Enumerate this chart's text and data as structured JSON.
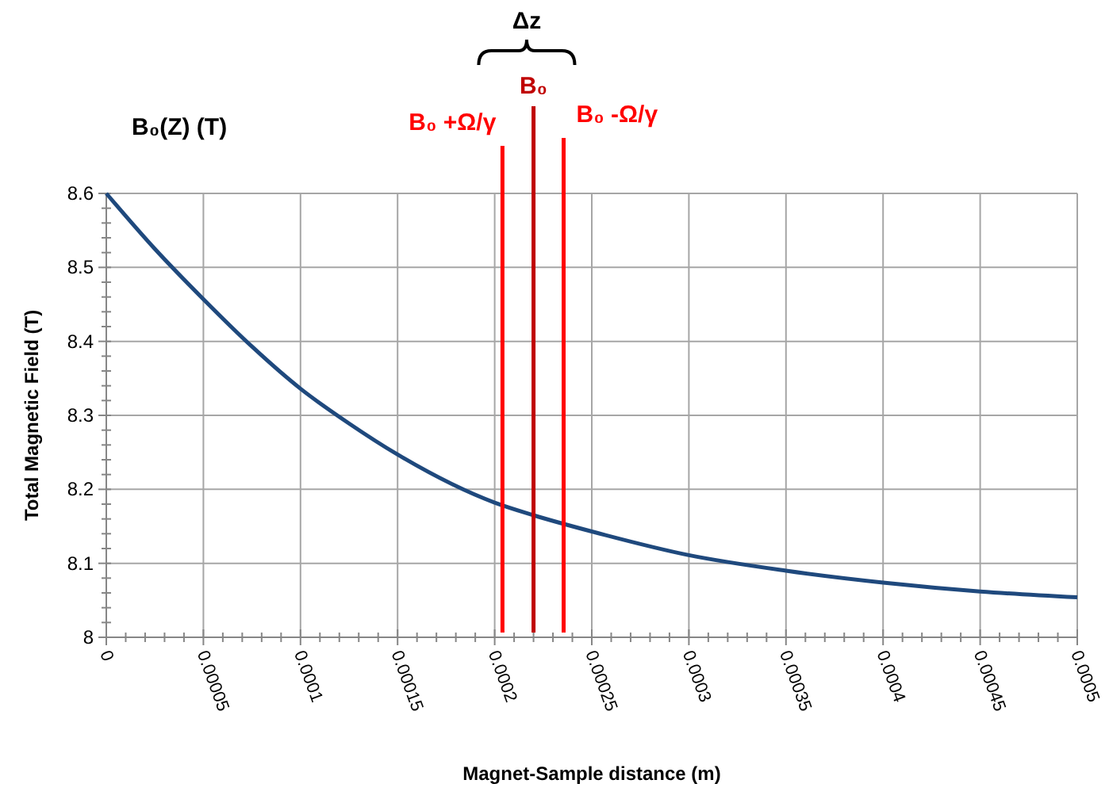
{
  "chart_data": {
    "type": "line",
    "xlabel": "Magnet-Sample distance (m)",
    "ylabel": "Total Magnetic Field (T)",
    "annotations": [
      "B₀(Z) (T)",
      "Δz"
    ],
    "x": [
      0,
      2.5e-05,
      5e-05,
      7.5e-05,
      0.0001,
      0.000125,
      0.00015,
      0.0002,
      0.00022,
      0.00025,
      0.0003,
      0.00035,
      0.0004,
      0.00045,
      0.0005
    ],
    "series": [
      {
        "color": "#1f497d",
        "values": [
          8.6,
          8.525,
          8.457,
          8.393,
          8.336,
          8.289,
          8.247,
          8.182,
          8.165,
          8.143,
          8.111,
          8.09,
          8.074,
          8.062,
          8.054
        ]
      }
    ],
    "xlim": [
      0,
      0.0005
    ],
    "ylim": [
      8,
      8.6
    ],
    "xticks": [
      0,
      {
        "value": 1e-05,
        "label": null
      },
      {
        "value": 2e-05,
        "label": null
      },
      {
        "value": 3e-05,
        "label": null
      },
      {
        "value": 4e-05,
        "label": null
      },
      {
        "value": 5e-05,
        "label": "0.00005"
      },
      {
        "value": 6e-05,
        "label": null
      },
      {
        "value": 7e-05,
        "label": null
      },
      {
        "value": 8e-05,
        "label": null
      },
      {
        "value": 9e-05,
        "label": null
      },
      {
        "value": 0.0001,
        "label": "0.0001"
      },
      {
        "value": 0.00011,
        "label": null
      },
      {
        "value": 0.00012,
        "label": null
      },
      {
        "value": 0.00013,
        "label": null
      },
      {
        "value": 0.00014,
        "label": null
      },
      {
        "value": 0.00015,
        "label": "0.00015"
      },
      {
        "value": 0.00016,
        "label": null
      },
      {
        "value": 0.00017,
        "label": null
      },
      {
        "value": 0.00018,
        "label": null
      },
      {
        "value": 0.00019,
        "label": null
      },
      {
        "value": 0.0002,
        "label": "0.0002"
      },
      {
        "value": 0.00021,
        "label": null
      },
      {
        "value": 0.00022,
        "label": null
      },
      {
        "value": 0.00023,
        "label": null
      },
      {
        "value": 0.00024,
        "label": null
      },
      {
        "value": 0.00025,
        "label": "0.00025"
      },
      {
        "value": 0.00026,
        "label": null
      },
      {
        "value": 0.00027,
        "label": null
      },
      {
        "value": 0.00028,
        "label": null
      },
      {
        "value": 0.00029,
        "label": null
      },
      {
        "value": 0.0003,
        "label": "0.0003"
      },
      {
        "value": 0.00031,
        "label": null
      },
      {
        "value": 0.00032,
        "label": null
      },
      {
        "value": 0.00033,
        "label": null
      },
      {
        "value": 0.00034,
        "label": null
      },
      {
        "value": 0.00035,
        "label": "0.00035"
      },
      {
        "value": 0.00036,
        "label": null
      },
      {
        "value": 0.00037,
        "label": null
      },
      {
        "value": 0.00038,
        "label": null
      },
      {
        "value": 0.00039,
        "label": null
      },
      {
        "value": 0.0004,
        "label": "0.0004"
      },
      {
        "value": 0.00041,
        "label": null
      },
      {
        "value": 0.00042,
        "label": null
      },
      {
        "value": 0.00043,
        "label": null
      },
      {
        "value": 0.00044,
        "label": null
      },
      {
        "value": 0.00045,
        "label": "0.00045"
      },
      {
        "value": 0.00046,
        "label": null
      },
      {
        "value": 0.00047,
        "label": null
      },
      {
        "value": 0.00048,
        "label": null
      },
      {
        "value": 0.00049,
        "label": null
      },
      {
        "value": 0.0005,
        "label": "0.0005"
      }
    ],
    "yticks": [
      8,
      {
        "value": 8.02,
        "label": null
      },
      {
        "value": 8.04,
        "label": null
      },
      {
        "value": 8.06,
        "label": null
      },
      {
        "value": 8.08,
        "label": null
      },
      8.1,
      {
        "value": 8.12,
        "label": null
      },
      {
        "value": 8.14,
        "label": null
      },
      {
        "value": 8.16,
        "label": null
      },
      {
        "value": 8.18,
        "label": null
      },
      8.2,
      {
        "value": 8.22,
        "label": null
      },
      {
        "value": 8.24,
        "label": null
      },
      {
        "value": 8.26,
        "label": null
      },
      {
        "value": 8.28,
        "label": null
      },
      8.3,
      {
        "value": 8.32,
        "label": null
      },
      {
        "value": 8.34,
        "label": null
      },
      {
        "value": 8.36,
        "label": null
      },
      {
        "value": 8.38,
        "label": null
      },
      8.4,
      {
        "value": 8.42,
        "label": null
      },
      {
        "value": 8.44,
        "label": null
      },
      {
        "value": 8.46,
        "label": null
      },
      {
        "value": 8.48,
        "label": null
      },
      8.5,
      {
        "value": 8.52,
        "label": null
      },
      {
        "value": 8.54,
        "label": null
      },
      {
        "value": 8.56,
        "label": null
      },
      {
        "value": 8.58,
        "label": null
      },
      8.6
    ],
    "grid": true,
    "ref_lines": [
      {
        "axis": "x",
        "value": 0.000204,
        "label": "B₀ +Ω/γ",
        "color": "#ff0000"
      },
      {
        "axis": "x",
        "value": 0.00022,
        "label": "B₀",
        "color": "#c00000"
      },
      {
        "axis": "x",
        "value": 0.0002355,
        "label": "B₀ -Ω/γ",
        "color": "#ff0000"
      }
    ]
  }
}
